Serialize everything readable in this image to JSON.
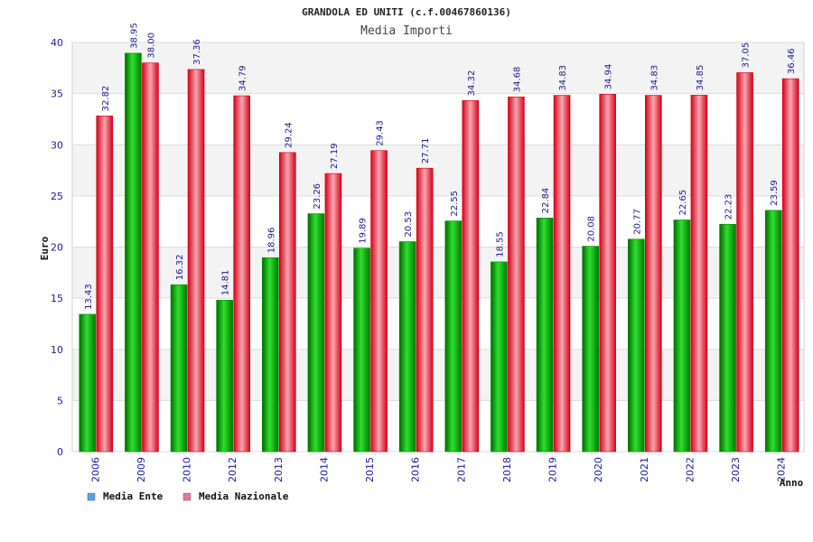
{
  "chart_data": {
    "type": "bar",
    "title": "GRANDOLA ED UNITI (c.f.00467860136)",
    "subtitle": "Media Importi",
    "ylabel": "Euro",
    "xlabel": "Anno",
    "ylim": [
      0,
      40
    ],
    "yticks": [
      0,
      5,
      10,
      15,
      20,
      25,
      30,
      35,
      40
    ],
    "grid": true,
    "legend_position": "bottom-left",
    "categories": [
      "2006",
      "2009",
      "2010",
      "2012",
      "2013",
      "2014",
      "2015",
      "2016",
      "2017",
      "2018",
      "2019",
      "2020",
      "2021",
      "2022",
      "2023",
      "2024"
    ],
    "series": [
      {
        "name": "Media Ente",
        "color": "#00b000",
        "legend_color": "#5aa0e8",
        "values": [
          13.43,
          38.95,
          16.32,
          14.81,
          18.96,
          23.26,
          19.89,
          20.53,
          22.55,
          18.55,
          22.84,
          20.08,
          20.77,
          22.65,
          22.23,
          23.59
        ]
      },
      {
        "name": "Media Nazionale",
        "color": "#e8101e",
        "legend_color": "#e07aa0",
        "values": [
          32.82,
          38.0,
          37.36,
          34.79,
          29.24,
          27.19,
          29.43,
          27.71,
          34.32,
          34.68,
          34.83,
          34.94,
          34.83,
          34.85,
          37.05,
          36.46
        ]
      }
    ],
    "data_labels": [
      [
        "13.43",
        "38.95",
        "16.32",
        "14.81",
        "18.96",
        "23.26",
        "19.89",
        "20.53",
        "22.55",
        "18.55",
        "22.84",
        "20.08",
        "20.77",
        "22.65",
        "22.23",
        "23.59"
      ],
      [
        "32.82",
        "38.00",
        "37.36",
        "34.79",
        "29.24",
        "27.19",
        "29.43",
        "27.71",
        "34.32",
        "34.68",
        "34.83",
        "34.94",
        "34.83",
        "34.85",
        "37.05",
        "36.46"
      ]
    ]
  }
}
